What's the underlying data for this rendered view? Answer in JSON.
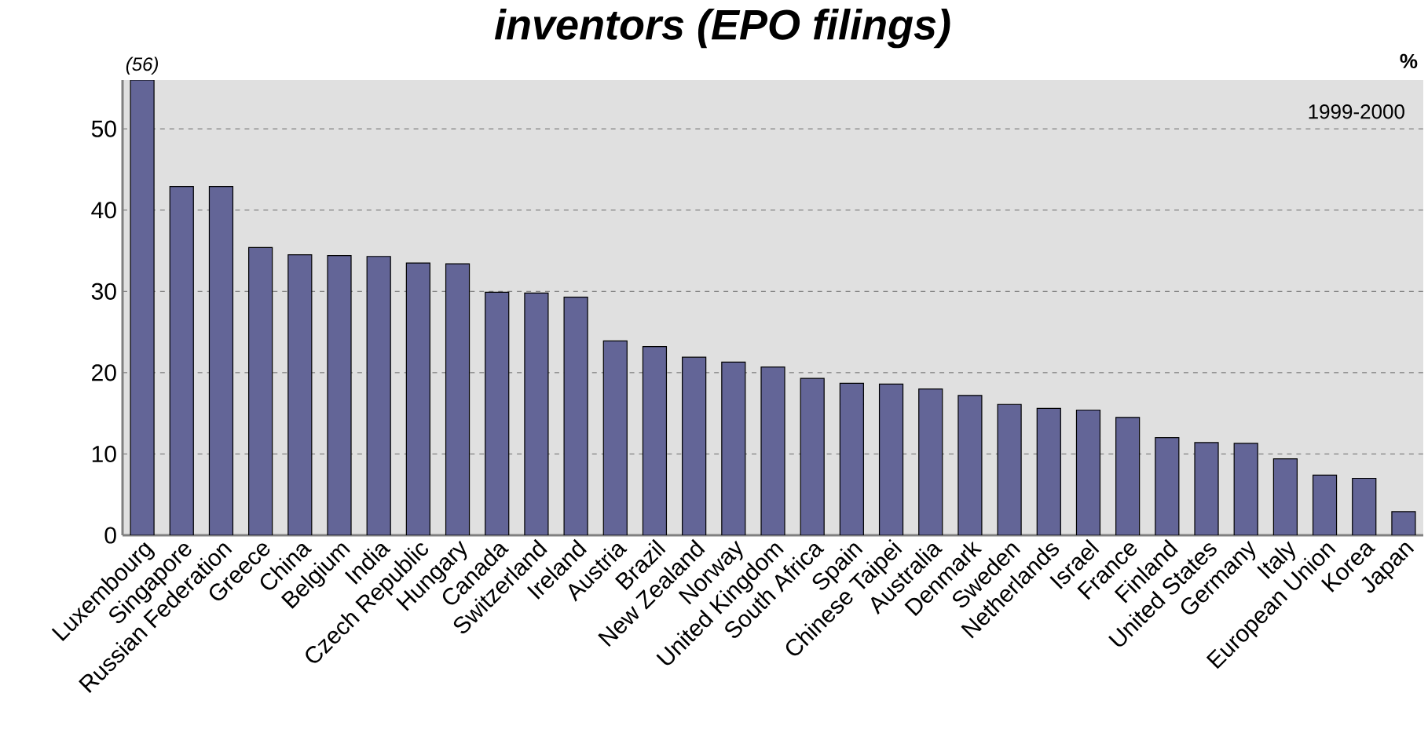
{
  "chart_data": {
    "type": "bar",
    "title": "inventors (EPO filings)",
    "ylabel": "%",
    "annotations": [
      "1999-2000"
    ],
    "categories": [
      "Luxembourg",
      "Singapore",
      "Russian Federation",
      "Greece",
      "China",
      "Belgium",
      "India",
      "Czech Republic",
      "Hungary",
      "Canada",
      "Switzerland",
      "Ireland",
      "Austria",
      "Brazil",
      "New Zealand",
      "Norway",
      "United Kingdom",
      "South Africa",
      "Spain",
      "Chinese Taipei",
      "Australia",
      "Denmark",
      "Sweden",
      "Netherlands",
      "Israel",
      "France",
      "Finland",
      "United States",
      "Germany",
      "Italy",
      "European Union",
      "Korea",
      "Japan"
    ],
    "values": [
      56,
      42.9,
      42.9,
      35.4,
      34.5,
      34.4,
      34.3,
      33.5,
      33.4,
      29.9,
      29.8,
      29.3,
      23.9,
      23.2,
      21.9,
      21.3,
      20.7,
      19.3,
      18.7,
      18.6,
      18.0,
      17.2,
      16.1,
      15.6,
      15.4,
      14.5,
      12.0,
      11.4,
      11.3,
      9.4,
      7.4,
      7.0,
      2.9
    ],
    "value_labels": [
      "(56)",
      null,
      null,
      null,
      null,
      null,
      null,
      null,
      null,
      null,
      null,
      null,
      null,
      null,
      null,
      null,
      null,
      null,
      null,
      null,
      null,
      null,
      null,
      null,
      null,
      null,
      null,
      null,
      null,
      null,
      null,
      null,
      null
    ],
    "color": "#636597",
    "ylim": [
      0,
      56
    ],
    "yticks": [
      0,
      10,
      20,
      30,
      40,
      50
    ],
    "grid": "y"
  }
}
